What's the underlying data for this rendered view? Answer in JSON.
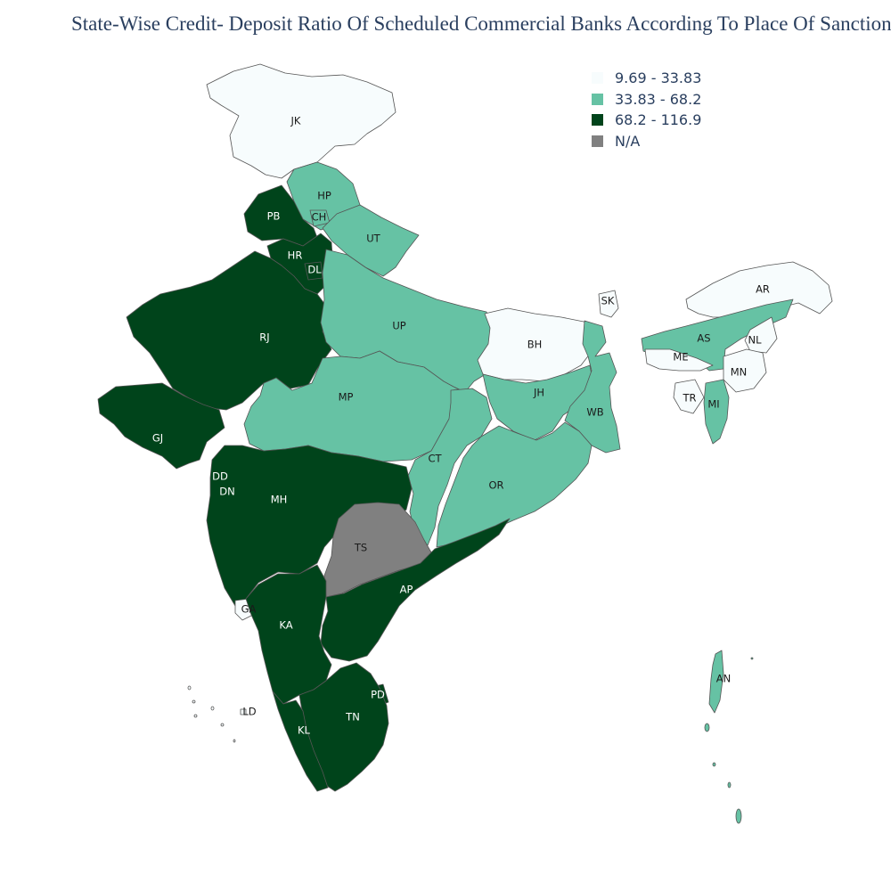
{
  "title": "State-Wise Credit- Deposit Ratio Of Scheduled Commercial Banks According To Place Of Sanction",
  "legend": [
    {
      "label": "9.69 - 33.83",
      "color": "#f7fcfd"
    },
    {
      "label": "33.83 - 68.2",
      "color": "#66c2a4"
    },
    {
      "label": "68.2 - 116.9",
      "color": "#00441b"
    },
    {
      "label": "N/A",
      "color": "#808080"
    }
  ],
  "colors": {
    "low": "#f7fcfd",
    "mid": "#66c2a4",
    "high": "#00441b",
    "na": "#808080",
    "border": "#555555"
  },
  "regions": [
    {
      "code": "JK",
      "bin": "low"
    },
    {
      "code": "HP",
      "bin": "mid"
    },
    {
      "code": "CH",
      "bin": "mid"
    },
    {
      "code": "PB",
      "bin": "high"
    },
    {
      "code": "UT",
      "bin": "mid"
    },
    {
      "code": "HR",
      "bin": "high"
    },
    {
      "code": "DL",
      "bin": "high"
    },
    {
      "code": "RJ",
      "bin": "high"
    },
    {
      "code": "UP",
      "bin": "mid"
    },
    {
      "code": "GJ",
      "bin": "high"
    },
    {
      "code": "MP",
      "bin": "mid"
    },
    {
      "code": "BH",
      "bin": "low"
    },
    {
      "code": "SK",
      "bin": "low"
    },
    {
      "code": "AR",
      "bin": "low"
    },
    {
      "code": "AS",
      "bin": "mid"
    },
    {
      "code": "NL",
      "bin": "low"
    },
    {
      "code": "ME",
      "bin": "low"
    },
    {
      "code": "MN",
      "bin": "low"
    },
    {
      "code": "TR",
      "bin": "low"
    },
    {
      "code": "MI",
      "bin": "mid"
    },
    {
      "code": "JH",
      "bin": "mid"
    },
    {
      "code": "WB",
      "bin": "mid"
    },
    {
      "code": "CT",
      "bin": "mid"
    },
    {
      "code": "OR",
      "bin": "mid"
    },
    {
      "code": "DD",
      "bin": "high"
    },
    {
      "code": "DN",
      "bin": "high"
    },
    {
      "code": "MH",
      "bin": "high"
    },
    {
      "code": "TS",
      "bin": "na"
    },
    {
      "code": "AP",
      "bin": "high"
    },
    {
      "code": "GA",
      "bin": "low"
    },
    {
      "code": "KA",
      "bin": "high"
    },
    {
      "code": "PD",
      "bin": "high"
    },
    {
      "code": "TN",
      "bin": "high"
    },
    {
      "code": "KL",
      "bin": "high"
    },
    {
      "code": "LD",
      "bin": "low"
    },
    {
      "code": "AN",
      "bin": "mid"
    }
  ]
}
